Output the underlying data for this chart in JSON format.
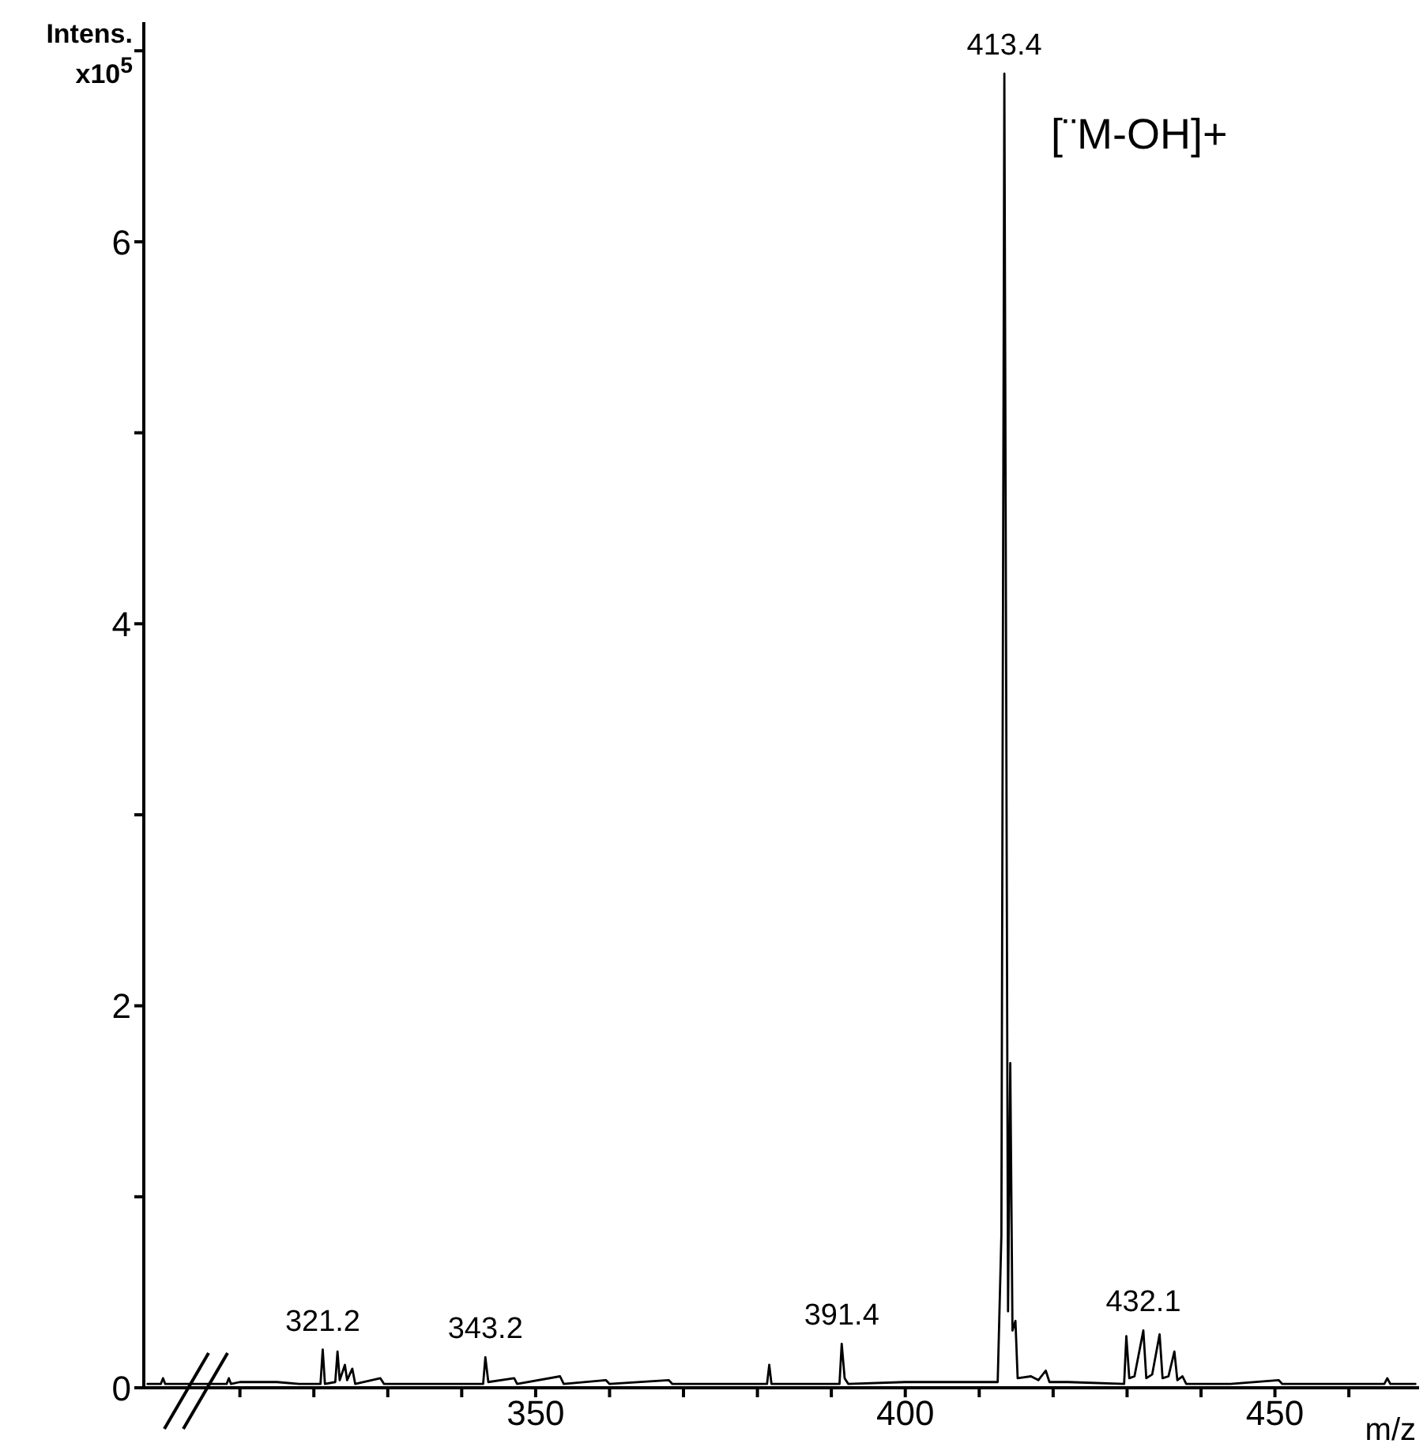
{
  "chart_data": {
    "type": "line",
    "ylabel": "Intens. x10$^{5}$",
    "xlabel": "m/z",
    "annotations": [
      {
        "text": "321.2",
        "x": 321.2,
        "y": 0.2
      },
      {
        "text": "343.2",
        "x": 343.2,
        "y": 0.16
      },
      {
        "text": "391.4",
        "x": 391.4,
        "y": 0.23
      },
      {
        "text": "413.4",
        "x": 413.4,
        "y": 6.88
      },
      {
        "text": "432.1",
        "x": 432.2,
        "y": 0.3
      },
      "[¨M-OH]+"
    ],
    "x": [
      297.5,
      299.3,
      299.6,
      299.9,
      302,
      305,
      308.2,
      308.5,
      308.8,
      310,
      312,
      315,
      318,
      320.9,
      321.2,
      321.5,
      322.9,
      323.2,
      323.5,
      324.2,
      324.5,
      325.2,
      325.6,
      329,
      329.5,
      338,
      342.9,
      343.2,
      343.6,
      347.1,
      347.5,
      353.3,
      353.8,
      359.5,
      360,
      368,
      368.5,
      375,
      381.3,
      381.6,
      381.9,
      385,
      391.1,
      391.4,
      391.8,
      392.3,
      400,
      405,
      412.5,
      413,
      413.4,
      413.9,
      414.2,
      414.5,
      414.9,
      415.2,
      417,
      418,
      419,
      419.5,
      422,
      429.6,
      429.9,
      430.3,
      431,
      432.2,
      432.6,
      433.4,
      434.4,
      434.8,
      435.6,
      436.4,
      436.8,
      437.5,
      438,
      444,
      450.5,
      451,
      460,
      464.8,
      465.2,
      465.6,
      469
    ],
    "series": [
      {
        "color": "#000000",
        "values": [
          0.02,
          0.02,
          0.05,
          0.02,
          0.02,
          0.02,
          0.02,
          0.05,
          0.02,
          0.03,
          0.03,
          0.03,
          0.02,
          0.02,
          0.2,
          0.02,
          0.03,
          0.19,
          0.04,
          0.12,
          0.04,
          0.1,
          0.02,
          0.05,
          0.02,
          0.02,
          0.02,
          0.16,
          0.03,
          0.05,
          0.02,
          0.06,
          0.02,
          0.04,
          0.02,
          0.04,
          0.02,
          0.02,
          0.02,
          0.12,
          0.02,
          0.02,
          0.02,
          0.23,
          0.05,
          0.02,
          0.03,
          0.03,
          0.03,
          0.8,
          6.88,
          0.4,
          1.7,
          0.3,
          0.35,
          0.05,
          0.06,
          0.04,
          0.09,
          0.03,
          0.03,
          0.02,
          0.27,
          0.05,
          0.06,
          0.3,
          0.05,
          0.07,
          0.28,
          0.05,
          0.06,
          0.19,
          0.04,
          0.06,
          0.02,
          0.02,
          0.04,
          0.02,
          0.02,
          0.02,
          0.05,
          0.02,
          0.02
        ]
      }
    ],
    "xlim": [
      297,
      469.5
    ],
    "xticks": [
      {
        "value": 310,
        "label": null
      },
      {
        "value": 320,
        "label": null
      },
      {
        "value": 330,
        "label": null
      },
      {
        "value": 340,
        "label": null
      },
      350,
      {
        "value": 360,
        "label": null
      },
      {
        "value": 370,
        "label": null
      },
      {
        "value": 380,
        "label": null
      },
      {
        "value": 390,
        "label": null
      },
      400,
      {
        "value": 410,
        "label": null
      },
      {
        "value": 420,
        "label": null
      },
      {
        "value": 430,
        "label": null
      },
      {
        "value": 440,
        "label": null
      },
      450,
      {
        "value": 460,
        "label": null
      }
    ],
    "ylim": [
      0,
      7.15
    ],
    "yticks": [
      0,
      {
        "value": 1,
        "label": null
      },
      2,
      {
        "value": 3,
        "label": null
      },
      4,
      {
        "value": 5,
        "label": null
      },
      6,
      {
        "value": 7,
        "label": null
      }
    ],
    "grid": false,
    "marker": "none",
    "line_style": "solid"
  }
}
